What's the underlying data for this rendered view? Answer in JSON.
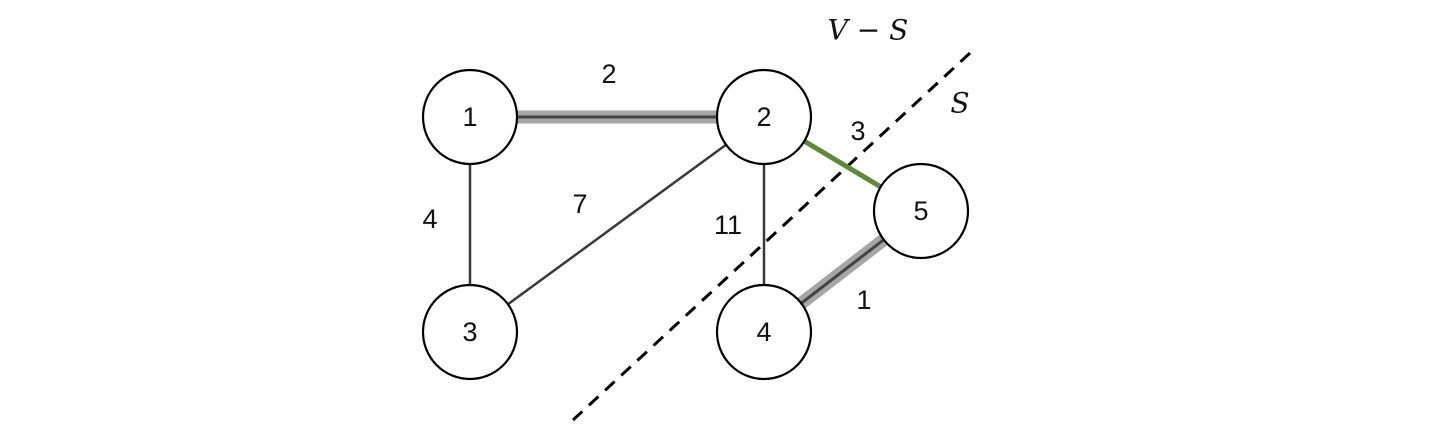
{
  "colors": {
    "mst_halo": "#a6a6a6",
    "crossing_edge": "#5b8a3a"
  },
  "regions": {
    "outside": "V − S",
    "inside": "S"
  },
  "nodes": [
    {
      "id": "1",
      "label": "1"
    },
    {
      "id": "2",
      "label": "2"
    },
    {
      "id": "3",
      "label": "3"
    },
    {
      "id": "4",
      "label": "4"
    },
    {
      "id": "5",
      "label": "5"
    }
  ],
  "edges": [
    {
      "from": "1",
      "to": "2",
      "weight": "2",
      "style": "mst"
    },
    {
      "from": "1",
      "to": "3",
      "weight": "4",
      "style": "plain"
    },
    {
      "from": "2",
      "to": "3",
      "weight": "7",
      "style": "plain"
    },
    {
      "from": "2",
      "to": "4",
      "weight": "11",
      "style": "plain"
    },
    {
      "from": "2",
      "to": "5",
      "weight": "3",
      "style": "crossing"
    },
    {
      "from": "4",
      "to": "5",
      "weight": "1",
      "style": "mst"
    }
  ]
}
